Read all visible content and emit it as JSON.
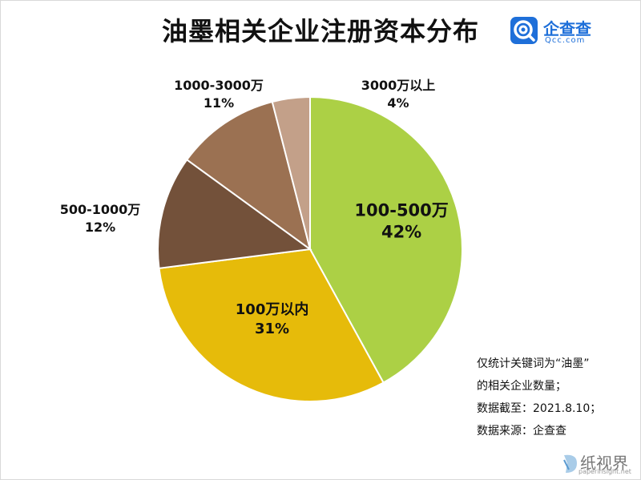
{
  "title": "油墨相关企业注册资本分布",
  "brand": {
    "name": "企查查",
    "sub": "Qcc.com",
    "icon": "qcc-logo-icon",
    "color": "#1e6fd9"
  },
  "chart_data": {
    "type": "pie",
    "title": "油墨相关企业注册资本分布",
    "start": "12 o'clock, clockwise",
    "slices": [
      {
        "label": "100-500万",
        "value": 42,
        "pct_text": "42%",
        "color": "#acd045"
      },
      {
        "label": "100万以内",
        "value": 31,
        "pct_text": "31%",
        "color": "#e6bb0a"
      },
      {
        "label": "500-1000万",
        "value": 12,
        "pct_text": "12%",
        "color": "#73513a"
      },
      {
        "label": "1000-3000万",
        "value": 11,
        "pct_text": "11%",
        "color": "#9b7152"
      },
      {
        "label": "3000万以上",
        "value": 4,
        "pct_text": "4%",
        "color": "#c3a089"
      }
    ]
  },
  "note": {
    "lines": [
      "仅统计关键词为“油墨”",
      "的相关企业数量；",
      "数据截至：2021.8.10；",
      "数据来源：企查查"
    ]
  },
  "watermark": {
    "text": "纸视界",
    "url": "paperinsight.net",
    "icon": "paperinsight-logo-icon"
  }
}
